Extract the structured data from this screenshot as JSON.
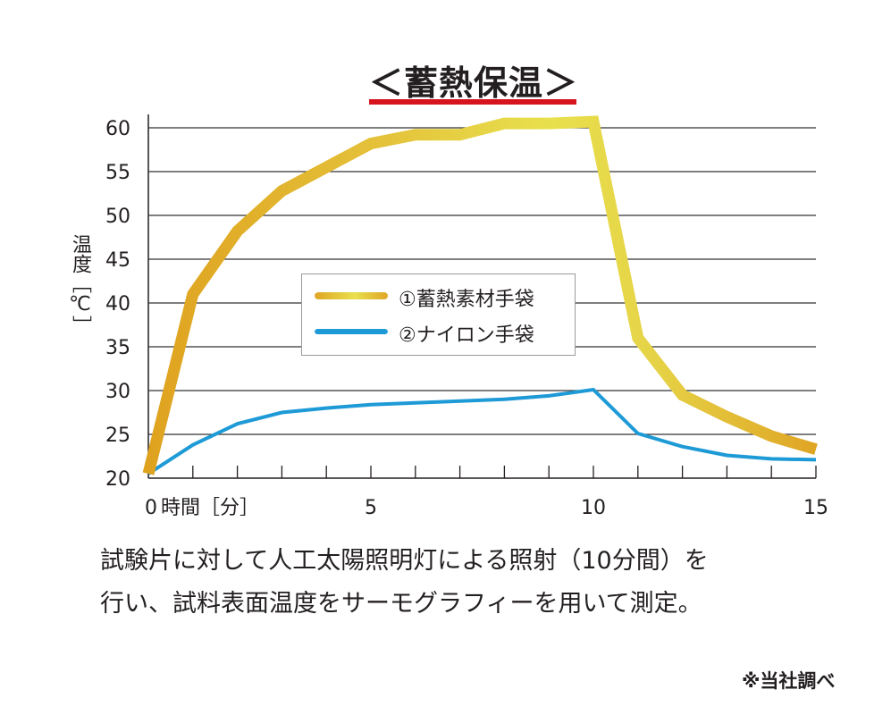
{
  "colors": {
    "title_underline": "#d7141d",
    "series1_dark": "#dfa524",
    "series1_light": "#e8e04d",
    "series2": "#1e9ad6",
    "grid": "#333333"
  },
  "chart_data": {
    "type": "line",
    "title": "＜蓄熱保温＞",
    "ylabel": "温度［℃］",
    "xlabel": "時間［分］",
    "xlim": [
      0,
      15
    ],
    "ylim": [
      20,
      60
    ],
    "grid": true,
    "legend_position": "center",
    "y_ticks": [
      "20",
      "25",
      "30",
      "35",
      "40",
      "45",
      "50",
      "55",
      "60"
    ],
    "x_ticks": [
      {
        "value": 0,
        "label": "0"
      },
      {
        "value": 5,
        "label": "5"
      },
      {
        "value": 10,
        "label": "10"
      },
      {
        "value": 15,
        "label": "15"
      }
    ],
    "x_minor_ticks": [
      1,
      2,
      3,
      4,
      5,
      6,
      7,
      8,
      9,
      10,
      11,
      12,
      13,
      14,
      15
    ],
    "x": [
      0,
      1,
      2,
      3,
      4,
      5,
      6,
      7,
      8,
      9,
      10,
      11,
      12,
      13,
      14,
      15
    ],
    "series": [
      {
        "name": "①蓄熱素材手袋",
        "values": [
          20.5,
          41,
          48.2,
          52.8,
          55.5,
          58.2,
          59.2,
          59.2,
          60.5,
          60.5,
          60.7,
          36,
          29.5,
          27,
          24.8,
          23.3
        ]
      },
      {
        "name": "②ナイロン手袋",
        "values": [
          20.5,
          23.8,
          26.2,
          27.5,
          28,
          28.4,
          28.6,
          28.8,
          29,
          29.4,
          30.1,
          25.1,
          23.6,
          22.6,
          22.2,
          22.1
        ]
      }
    ]
  },
  "note_lines": [
    "試験片に対して人工太陽照明灯による照射（10分間）を",
    "行い、試料表面温度をサーモグラフィーを用いて測定。"
  ],
  "source": "※当社調べ"
}
